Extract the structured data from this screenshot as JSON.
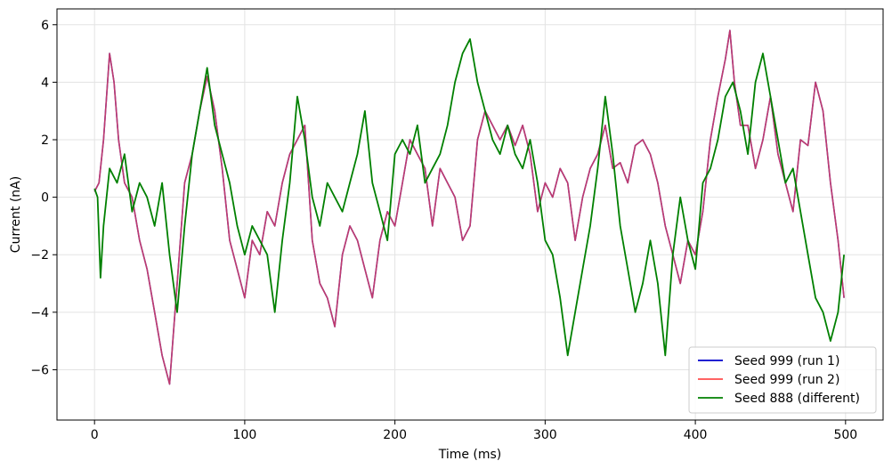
{
  "chart_data": {
    "type": "line",
    "xlabel": "Time (ms)",
    "ylabel": "Current (nA)",
    "xlim": [
      -25,
      525
    ],
    "ylim": [
      -7.75,
      6.55
    ],
    "xticks": [
      0,
      100,
      200,
      300,
      400,
      500
    ],
    "yticks": [
      -6,
      -4,
      -2,
      0,
      2,
      4,
      6
    ],
    "grid": true,
    "legend_position": "lower-right",
    "series": [
      {
        "name": "Seed 999 (run 1)",
        "color": "#0000cc",
        "x": [
          0,
          3,
          6,
          10,
          13,
          16,
          20,
          25,
          30,
          35,
          40,
          45,
          50,
          55,
          60,
          65,
          70,
          75,
          80,
          85,
          90,
          95,
          100,
          105,
          110,
          115,
          120,
          125,
          130,
          135,
          140,
          145,
          150,
          155,
          160,
          165,
          170,
          175,
          180,
          185,
          190,
          195,
          200,
          205,
          210,
          215,
          220,
          225,
          230,
          235,
          240,
          245,
          250,
          255,
          260,
          265,
          270,
          275,
          280,
          285,
          290,
          295,
          300,
          305,
          310,
          315,
          320,
          325,
          330,
          335,
          340,
          345,
          350,
          355,
          360,
          365,
          370,
          375,
          380,
          385,
          390,
          395,
          400,
          405,
          410,
          415,
          420,
          423,
          426,
          430,
          435,
          440,
          445,
          450,
          455,
          460,
          465,
          470,
          475,
          480,
          485,
          490,
          495,
          499
        ],
        "y": [
          0.2,
          0.5,
          2.0,
          5.0,
          4.0,
          2.0,
          0.5,
          0.0,
          -1.5,
          -2.5,
          -4.0,
          -5.5,
          -6.5,
          -3.0,
          0.5,
          1.5,
          3.0,
          4.2,
          3.0,
          1.0,
          -1.5,
          -2.5,
          -3.5,
          -1.5,
          -2.0,
          -0.5,
          -1.0,
          0.5,
          1.5,
          2.0,
          2.5,
          -1.5,
          -3.0,
          -3.5,
          -4.5,
          -2.0,
          -1.0,
          -1.5,
          -2.5,
          -3.5,
          -1.5,
          -0.5,
          -1.0,
          0.5,
          2.0,
          1.5,
          1.0,
          -1.0,
          1.0,
          0.5,
          0.0,
          -1.5,
          -1.0,
          2.0,
          3.0,
          2.5,
          2.0,
          2.5,
          1.8,
          2.5,
          1.5,
          -0.5,
          0.5,
          0.0,
          1.0,
          0.5,
          -1.5,
          0.0,
          1.0,
          1.5,
          2.5,
          1.0,
          1.2,
          0.5,
          1.8,
          2.0,
          1.5,
          0.5,
          -1.0,
          -2.0,
          -3.0,
          -1.5,
          -2.0,
          -0.5,
          2.0,
          3.5,
          4.8,
          5.8,
          4.0,
          2.5,
          2.5,
          1.0,
          2.0,
          3.5,
          1.5,
          0.5,
          -0.5,
          2.0,
          1.8,
          4.0,
          3.0,
          0.5,
          -1.5,
          -3.5
        ]
      },
      {
        "name": "Seed 999 (run 2)",
        "color": "#ff4d4d",
        "x": [
          0,
          3,
          6,
          10,
          13,
          16,
          20,
          25,
          30,
          35,
          40,
          45,
          50,
          55,
          60,
          65,
          70,
          75,
          80,
          85,
          90,
          95,
          100,
          105,
          110,
          115,
          120,
          125,
          130,
          135,
          140,
          145,
          150,
          155,
          160,
          165,
          170,
          175,
          180,
          185,
          190,
          195,
          200,
          205,
          210,
          215,
          220,
          225,
          230,
          235,
          240,
          245,
          250,
          255,
          260,
          265,
          270,
          275,
          280,
          285,
          290,
          295,
          300,
          305,
          310,
          315,
          320,
          325,
          330,
          335,
          340,
          345,
          350,
          355,
          360,
          365,
          370,
          375,
          380,
          385,
          390,
          395,
          400,
          405,
          410,
          415,
          420,
          423,
          426,
          430,
          435,
          440,
          445,
          450,
          455,
          460,
          465,
          470,
          475,
          480,
          485,
          490,
          495,
          499
        ],
        "y": [
          0.2,
          0.5,
          2.0,
          5.0,
          4.0,
          2.0,
          0.5,
          0.0,
          -1.5,
          -2.5,
          -4.0,
          -5.5,
          -6.5,
          -3.0,
          0.5,
          1.5,
          3.0,
          4.2,
          3.0,
          1.0,
          -1.5,
          -2.5,
          -3.5,
          -1.5,
          -2.0,
          -0.5,
          -1.0,
          0.5,
          1.5,
          2.0,
          2.5,
          -1.5,
          -3.0,
          -3.5,
          -4.5,
          -2.0,
          -1.0,
          -1.5,
          -2.5,
          -3.5,
          -1.5,
          -0.5,
          -1.0,
          0.5,
          2.0,
          1.5,
          1.0,
          -1.0,
          1.0,
          0.5,
          0.0,
          -1.5,
          -1.0,
          2.0,
          3.0,
          2.5,
          2.0,
          2.5,
          1.8,
          2.5,
          1.5,
          -0.5,
          0.5,
          0.0,
          1.0,
          0.5,
          -1.5,
          0.0,
          1.0,
          1.5,
          2.5,
          1.0,
          1.2,
          0.5,
          1.8,
          2.0,
          1.5,
          0.5,
          -1.0,
          -2.0,
          -3.0,
          -1.5,
          -2.0,
          -0.5,
          2.0,
          3.5,
          4.8,
          5.8,
          4.0,
          2.5,
          2.5,
          1.0,
          2.0,
          3.5,
          1.5,
          0.5,
          -0.5,
          2.0,
          1.8,
          4.0,
          3.0,
          0.5,
          -1.5,
          -3.5
        ]
      },
      {
        "name": "Seed 888 (different)",
        "color": "#008000",
        "x": [
          0,
          2,
          4,
          6,
          10,
          15,
          20,
          25,
          30,
          35,
          40,
          45,
          50,
          55,
          60,
          65,
          70,
          75,
          80,
          85,
          90,
          95,
          100,
          105,
          110,
          115,
          120,
          125,
          130,
          135,
          140,
          145,
          150,
          155,
          160,
          165,
          170,
          175,
          180,
          185,
          190,
          195,
          200,
          205,
          210,
          215,
          220,
          225,
          230,
          235,
          240,
          245,
          250,
          255,
          260,
          265,
          270,
          275,
          280,
          285,
          290,
          295,
          300,
          305,
          310,
          315,
          320,
          325,
          330,
          335,
          340,
          345,
          350,
          355,
          360,
          365,
          370,
          375,
          380,
          385,
          390,
          395,
          400,
          405,
          410,
          415,
          420,
          425,
          430,
          435,
          440,
          445,
          450,
          455,
          460,
          465,
          470,
          475,
          480,
          485,
          490,
          495,
          499
        ],
        "y": [
          0.3,
          0.0,
          -2.8,
          -1.0,
          1.0,
          0.5,
          1.5,
          -0.5,
          0.5,
          0.0,
          -1.0,
          0.5,
          -2.0,
          -4.0,
          -1.0,
          1.5,
          3.0,
          4.5,
          2.5,
          1.5,
          0.5,
          -1.0,
          -2.0,
          -1.0,
          -1.5,
          -2.0,
          -4.0,
          -1.5,
          0.5,
          3.5,
          2.0,
          0.0,
          -1.0,
          0.5,
          0.0,
          -0.5,
          0.5,
          1.5,
          3.0,
          0.5,
          -0.5,
          -1.5,
          1.5,
          2.0,
          1.5,
          2.5,
          0.5,
          1.0,
          1.5,
          2.5,
          4.0,
          5.0,
          5.5,
          4.0,
          3.0,
          2.0,
          1.5,
          2.5,
          1.5,
          1.0,
          2.0,
          0.5,
          -1.5,
          -2.0,
          -3.5,
          -5.5,
          -4.0,
          -2.5,
          -1.0,
          1.0,
          3.5,
          1.5,
          -1.0,
          -2.5,
          -4.0,
          -3.0,
          -1.5,
          -3.0,
          -5.5,
          -2.0,
          0.0,
          -1.5,
          -2.5,
          0.5,
          1.0,
          2.0,
          3.5,
          4.0,
          3.0,
          1.5,
          4.0,
          5.0,
          3.5,
          2.0,
          0.5,
          1.0,
          -0.5,
          -2.0,
          -3.5,
          -4.0,
          -5.0,
          -4.0,
          -2.0
        ]
      }
    ]
  }
}
